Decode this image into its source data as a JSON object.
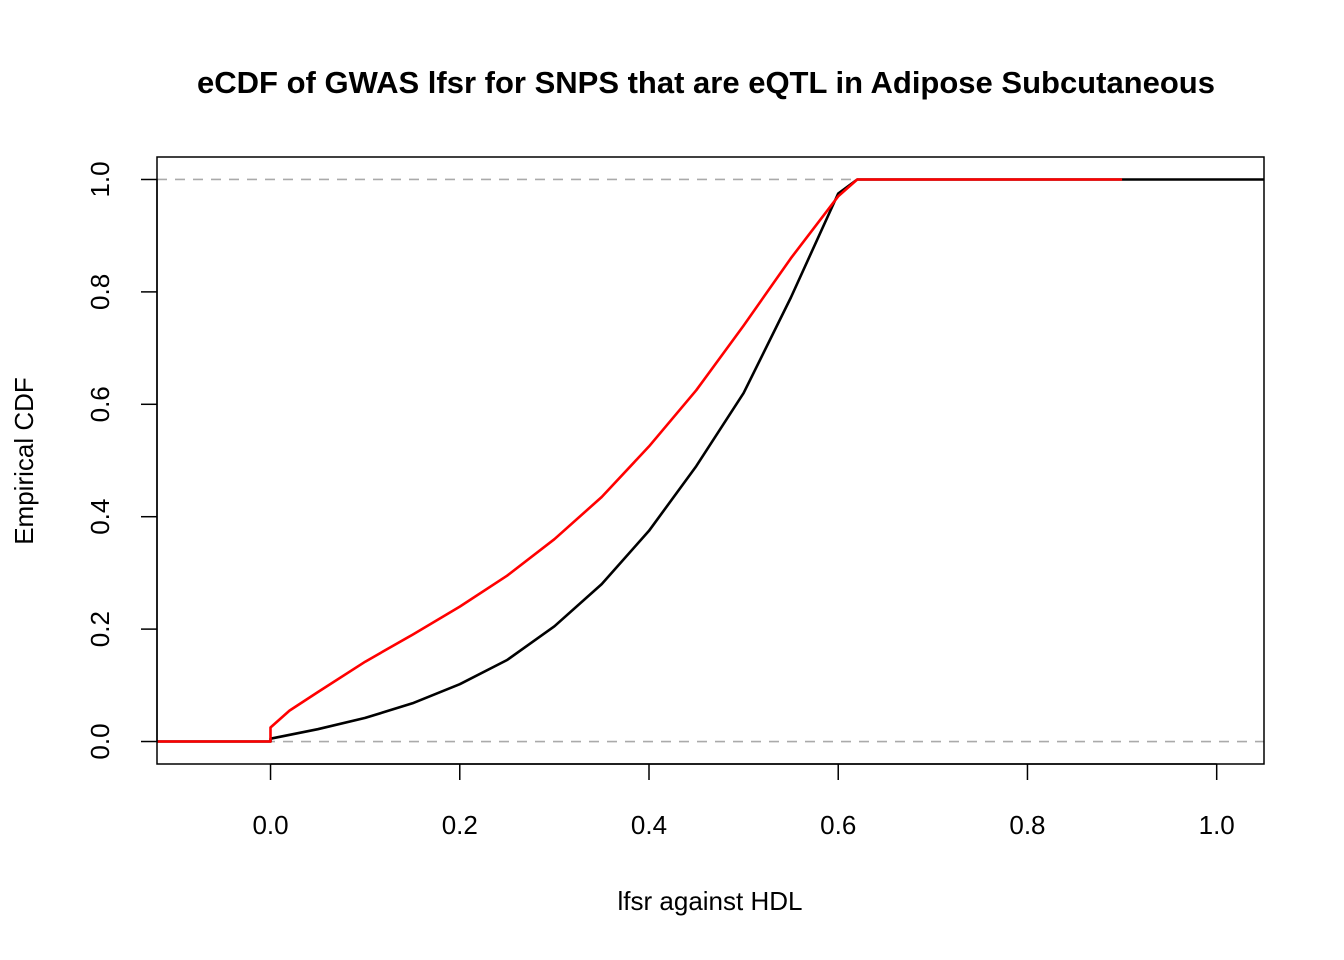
{
  "chart_data": {
    "type": "line",
    "title": "eCDF of GWAS lfsr for SNPS that are eQTL in Adipose Subcutaneous",
    "xlabel": "lfsr against HDL",
    "ylabel": "Empirical CDF",
    "xlim": [
      -0.12,
      1.05
    ],
    "ylim": [
      -0.04,
      1.04
    ],
    "x_ticks": [
      "0.0",
      "0.2",
      "0.4",
      "0.6",
      "0.8",
      "1.0"
    ],
    "y_ticks": [
      "0.0",
      "0.2",
      "0.4",
      "0.6",
      "0.8",
      "1.0"
    ],
    "reference_lines": [
      0,
      1
    ],
    "grid": false,
    "legend": "none",
    "series": [
      {
        "color": "#000000",
        "x": [
          -0.12,
          0.0,
          0.0,
          0.05,
          0.1,
          0.15,
          0.2,
          0.25,
          0.3,
          0.35,
          0.4,
          0.45,
          0.5,
          0.55,
          0.6,
          0.62,
          1.05
        ],
        "y": [
          0.0,
          0.0,
          0.005,
          0.022,
          0.042,
          0.068,
          0.102,
          0.145,
          0.205,
          0.28,
          0.375,
          0.49,
          0.62,
          0.79,
          0.975,
          1.0,
          1.0
        ]
      },
      {
        "color": "#ff0000",
        "x": [
          -0.12,
          0.0,
          0.0,
          0.02,
          0.05,
          0.1,
          0.15,
          0.2,
          0.25,
          0.3,
          0.35,
          0.4,
          0.45,
          0.5,
          0.55,
          0.6,
          0.62,
          0.9
        ],
        "y": [
          0.0,
          0.0,
          0.025,
          0.055,
          0.088,
          0.142,
          0.19,
          0.24,
          0.295,
          0.36,
          0.435,
          0.525,
          0.625,
          0.74,
          0.86,
          0.97,
          1.0,
          1.0
        ]
      }
    ]
  }
}
